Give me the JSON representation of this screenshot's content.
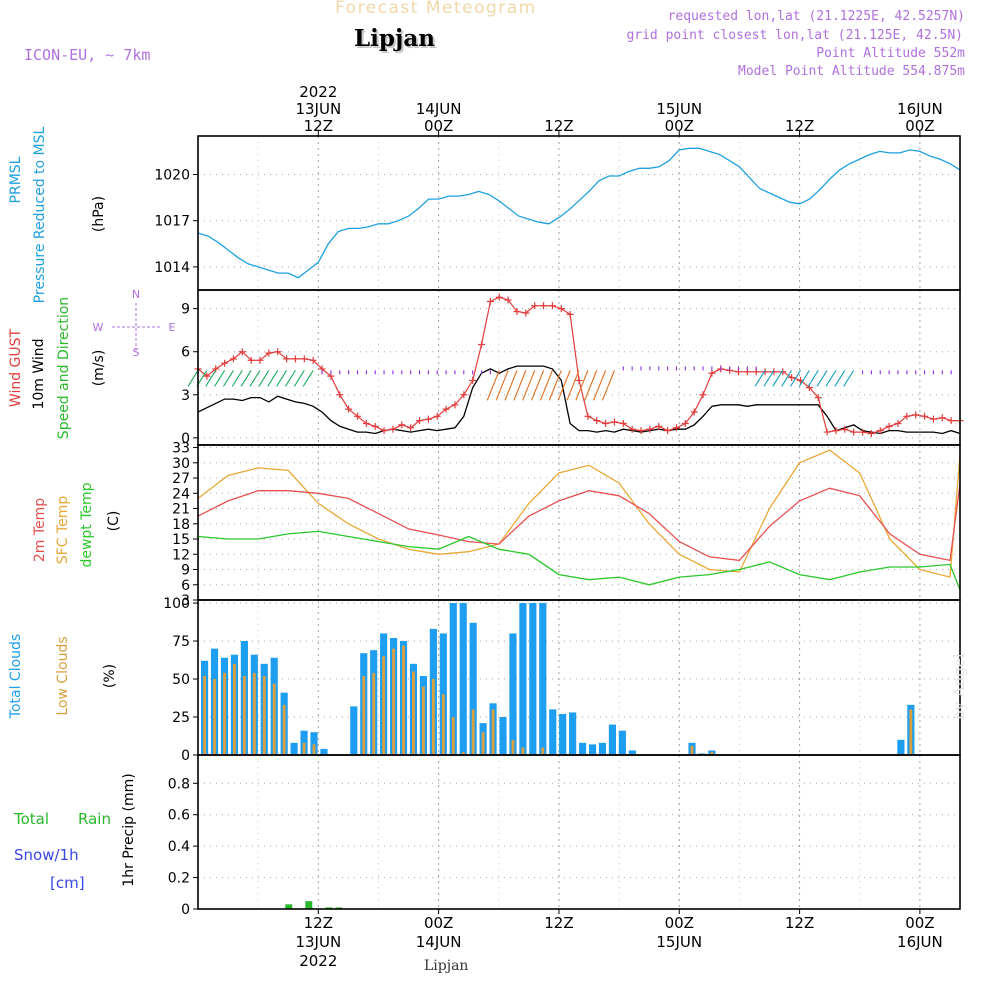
{
  "header": {
    "title_faint": "Forecast Meteogram",
    "location": "Lipjan",
    "model": "ICON-EU, ~ 7km",
    "requested": "requested lon,lat (21.1225E, 42.5257N)",
    "gridpoint": "grid point closest lon,lat (21.125E, 42.5N)",
    "point_alt": "Point Altitude 552m",
    "model_alt": "Model Point Altitude 554.875m",
    "watermark": "by Angel",
    "footer": "Lipjan"
  },
  "colors": {
    "pressure": "#1fa0e0",
    "gust": "#e23c3c",
    "wind": "#000000",
    "t2m": "#e85050",
    "sfc": "#e8a838",
    "dew": "#2ac82a",
    "total_cloud": "#1e9ef0",
    "low_cloud": "#d8a040",
    "rain": "#2ab82a",
    "snow": "#3848e8",
    "meta": "#b070e0"
  },
  "time_axis": {
    "top": [
      {
        "t": 12,
        "lines": [
          "2022",
          "13JUN",
          "12Z"
        ]
      },
      {
        "t": 24,
        "lines": [
          "14JUN",
          "00Z"
        ]
      },
      {
        "t": 36,
        "lines": [
          "12Z"
        ]
      },
      {
        "t": 48,
        "lines": [
          "15JUN",
          "00Z"
        ]
      },
      {
        "t": 60,
        "lines": [
          "12Z"
        ]
      },
      {
        "t": 72,
        "lines": [
          "16JUN",
          "00Z"
        ]
      }
    ],
    "bottom": [
      {
        "t": 12,
        "lines": [
          "12Z",
          "13JUN",
          "2022"
        ]
      },
      {
        "t": 24,
        "lines": [
          "00Z",
          "14JUN"
        ]
      },
      {
        "t": 36,
        "lines": [
          "12Z"
        ]
      },
      {
        "t": 48,
        "lines": [
          "00Z",
          "15JUN"
        ]
      },
      {
        "t": 60,
        "lines": [
          "12Z"
        ]
      },
      {
        "t": 72,
        "lines": [
          "00Z",
          "16JUN"
        ]
      }
    ]
  },
  "chart_data": [
    {
      "type": "line",
      "title": "PRMSL Pressure Reduced to MSL",
      "ylabel": "(hPa)",
      "yticks": [
        1014,
        1017,
        1020
      ],
      "ylim": [
        1012.5,
        1022.5
      ],
      "xlim_hours": [
        0,
        76
      ],
      "series": [
        {
          "name": "PRMSL Pressure Reduced to MSL",
          "t": [
            0,
            1,
            2,
            3,
            4,
            5,
            6,
            7,
            8,
            9,
            10,
            11,
            12,
            13,
            14,
            15,
            16,
            17,
            18,
            19,
            20,
            21,
            22,
            23,
            24,
            25,
            26,
            27,
            28,
            29,
            30,
            31,
            32,
            33,
            34,
            35,
            36,
            37,
            38,
            39,
            40,
            41,
            42,
            43,
            44,
            45,
            46,
            47,
            48,
            49,
            50,
            51,
            52,
            53,
            54,
            55,
            56,
            57,
            58,
            59,
            60,
            61,
            62,
            63,
            64,
            65,
            66,
            67,
            68,
            69,
            70,
            71,
            72,
            73,
            74,
            75,
            76
          ],
          "values": [
            1016.2,
            1016.0,
            1015.6,
            1015.1,
            1014.6,
            1014.2,
            1014.0,
            1013.8,
            1013.6,
            1013.6,
            1013.3,
            1013.8,
            1014.3,
            1015.5,
            1016.3,
            1016.5,
            1016.5,
            1016.6,
            1016.8,
            1016.8,
            1017.0,
            1017.3,
            1017.8,
            1018.4,
            1018.4,
            1018.6,
            1018.6,
            1018.7,
            1018.9,
            1018.7,
            1018.3,
            1017.8,
            1017.3,
            1017.1,
            1016.9,
            1016.8,
            1017.2,
            1017.7,
            1018.3,
            1018.9,
            1019.6,
            1019.9,
            1019.9,
            1020.2,
            1020.4,
            1020.4,
            1020.5,
            1020.9,
            1021.6,
            1021.7,
            1021.7,
            1021.5,
            1021.3,
            1020.9,
            1020.5,
            1019.8,
            1019.1,
            1018.8,
            1018.5,
            1018.2,
            1018.1,
            1018.4,
            1019.0,
            1019.7,
            1020.3,
            1020.7,
            1021.0,
            1021.3,
            1021.5,
            1021.4,
            1021.4,
            1021.6,
            1021.5,
            1021.2,
            1021.0,
            1020.7,
            1020.3
          ]
        }
      ]
    },
    {
      "type": "line",
      "title": "Wind GUST / 10m Wind Speed and Direction",
      "ylabel": "(m/s)",
      "yticks": [
        0,
        3,
        6,
        9
      ],
      "ylim": [
        -0.5,
        10.3
      ],
      "compass": [
        "N",
        "W",
        "E",
        "S"
      ],
      "series": [
        {
          "name": "Wind GUST",
          "values": [
            4.8,
            4.3,
            4.8,
            5.2,
            5.5,
            6.0,
            5.4,
            5.4,
            5.9,
            6.0,
            5.5,
            5.5,
            5.5,
            5.4,
            4.8,
            4.3,
            3.0,
            2.0,
            1.5,
            1.0,
            0.8,
            0.5,
            0.6,
            0.9,
            0.7,
            1.2,
            1.3,
            1.5,
            2.0,
            2.3,
            3.0,
            4.0,
            6.5,
            9.5,
            9.8,
            9.6,
            8.8,
            8.7,
            9.2,
            9.2,
            9.2,
            9.0,
            8.6,
            4.0,
            1.5,
            1.2,
            1.0,
            1.1,
            1.0,
            0.6,
            0.5,
            0.6,
            0.8,
            0.5,
            0.7,
            1.0,
            1.8,
            3.0,
            4.5,
            4.8,
            4.7,
            4.6,
            4.6,
            4.6,
            4.6,
            4.6,
            4.6,
            4.2,
            4.0,
            3.5,
            2.8,
            0.4,
            0.5,
            0.6,
            0.4,
            0.4,
            0.3,
            0.5,
            0.8,
            1.0,
            1.5,
            1.6,
            1.5,
            1.3,
            1.4,
            1.2,
            1.2
          ]
        },
        {
          "name": "10m Wind",
          "values": [
            1.8,
            2.1,
            2.4,
            2.7,
            2.7,
            2.6,
            2.8,
            2.8,
            2.5,
            2.9,
            2.7,
            2.5,
            2.4,
            2.2,
            1.8,
            1.2,
            0.8,
            0.6,
            0.4,
            0.4,
            0.3,
            0.5,
            0.6,
            0.5,
            0.4,
            0.5,
            0.6,
            0.5,
            0.6,
            0.7,
            1.5,
            3.5,
            4.5,
            4.8,
            4.5,
            4.8,
            5.0,
            5.0,
            5.0,
            5.0,
            4.8,
            4.0,
            1.0,
            0.5,
            0.5,
            0.4,
            0.5,
            0.4,
            0.6,
            0.5,
            0.4,
            0.5,
            0.6,
            0.5,
            0.6,
            0.6,
            0.9,
            1.5,
            2.2,
            2.3,
            2.3,
            2.3,
            2.2,
            2.3,
            2.3,
            2.3,
            2.3,
            2.3,
            2.3,
            2.3,
            2.3,
            1.5,
            0.5,
            0.7,
            0.9,
            0.5,
            0.4,
            0.3,
            0.5,
            0.5,
            0.4,
            0.4,
            0.4,
            0.4,
            0.3,
            0.5,
            0.3
          ]
        }
      ]
    },
    {
      "type": "line",
      "title": "2m Temp / SFC Temp / dewpt Temp",
      "ylabel": "(C)",
      "yticks": [
        3,
        6,
        9,
        12,
        15,
        18,
        21,
        24,
        27,
        30,
        33
      ],
      "ylim": [
        3,
        33.5
      ],
      "series": [
        {
          "name": "2m Temp",
          "t": [
            0,
            3,
            6,
            9,
            12,
            15,
            18,
            21,
            24,
            27,
            30,
            33,
            36,
            39,
            42,
            45,
            48,
            51,
            54,
            57,
            60,
            63,
            66,
            69,
            72,
            75,
            76
          ],
          "values": [
            19.5,
            22.5,
            24.5,
            24.5,
            24.0,
            23.0,
            20.0,
            17.0,
            15.8,
            14.5,
            14.0,
            19.5,
            22.5,
            24.5,
            23.5,
            20.0,
            14.5,
            11.5,
            10.8,
            17.5,
            22.5,
            25.0,
            23.5,
            16.0,
            12.0,
            10.8,
            25.8
          ]
        },
        {
          "name": "SFC Temp",
          "t": [
            0,
            3,
            6,
            9,
            12,
            15,
            18,
            21,
            24,
            27,
            30,
            33,
            36,
            39,
            42,
            45,
            48,
            51,
            54,
            57,
            60,
            63,
            66,
            69,
            72,
            75,
            76
          ],
          "values": [
            23.0,
            27.5,
            29.0,
            28.5,
            22.0,
            18.0,
            15.0,
            13.0,
            12.0,
            12.5,
            14.0,
            22.0,
            28.0,
            29.5,
            26.0,
            18.0,
            12.0,
            9.0,
            8.5,
            21.0,
            30.0,
            32.5,
            28.0,
            15.0,
            9.0,
            7.5,
            31.5
          ]
        },
        {
          "name": "dewpt Temp",
          "t": [
            0,
            3,
            6,
            9,
            12,
            15,
            18,
            21,
            24,
            27,
            30,
            33,
            36,
            39,
            42,
            45,
            48,
            51,
            54,
            57,
            60,
            63,
            66,
            69,
            72,
            75,
            76
          ],
          "values": [
            15.5,
            15.0,
            15.0,
            16.0,
            16.5,
            15.5,
            14.5,
            13.5,
            13.0,
            15.5,
            13.0,
            12.0,
            8.0,
            7.0,
            7.5,
            6.0,
            7.5,
            8.0,
            9.0,
            10.5,
            8.0,
            7.0,
            8.5,
            9.5,
            9.5,
            10.0,
            5.0
          ]
        }
      ]
    },
    {
      "type": "bar",
      "title": "Total Clouds / Low Clouds",
      "ylabel": "(%)",
      "yticks": [
        0,
        25,
        50,
        75,
        100
      ],
      "ylim": [
        0,
        102
      ],
      "series": [
        {
          "name": "Total Clouds",
          "values": [
            62,
            70,
            64,
            66,
            75,
            66,
            60,
            64,
            41,
            8,
            16,
            15,
            4,
            0,
            0,
            32,
            67,
            69,
            80,
            77,
            75,
            60,
            52,
            83,
            80,
            100,
            100,
            87,
            21,
            34,
            25,
            80,
            100,
            100,
            100,
            30,
            27,
            28,
            8,
            7,
            8,
            20,
            16,
            3,
            0,
            0,
            0,
            0,
            0,
            8,
            1,
            3,
            0,
            0,
            0,
            0,
            0,
            0,
            0,
            0,
            0,
            0,
            0,
            0,
            0,
            0,
            0,
            0,
            0,
            0,
            10,
            33,
            0,
            0,
            0,
            0
          ]
        },
        {
          "name": "Low Clouds",
          "values": [
            52,
            50,
            54,
            60,
            52,
            54,
            52,
            47,
            33,
            0,
            8,
            7,
            0,
            0,
            0,
            0,
            52,
            54,
            65,
            70,
            72,
            55,
            45,
            50,
            40,
            25,
            2,
            30,
            15,
            30,
            0,
            10,
            5,
            0,
            5,
            0,
            0,
            0,
            0,
            0,
            0,
            0,
            0,
            0,
            0,
            0,
            0,
            0,
            0,
            6,
            0,
            2,
            0,
            0,
            0,
            0,
            0,
            0,
            0,
            0,
            0,
            0,
            0,
            0,
            0,
            0,
            0,
            0,
            0,
            0,
            0,
            30,
            0,
            0,
            0,
            0
          ]
        }
      ]
    },
    {
      "type": "bar",
      "title": "1hr Precip (mm)",
      "ylabel": "1hr Precip (mm)",
      "yticks": [
        "0",
        "0.2",
        "0.4",
        "0.6",
        "0.8"
      ],
      "ylim": [
        0,
        0.98
      ],
      "legend": [
        "Total",
        "Rain",
        "Snow/1h",
        "[cm]"
      ],
      "series": [
        {
          "name": "Total Rain",
          "t": [
            9,
            11,
            13,
            14
          ],
          "values": [
            0.03,
            0.05,
            0.01,
            0.01
          ]
        }
      ]
    }
  ]
}
